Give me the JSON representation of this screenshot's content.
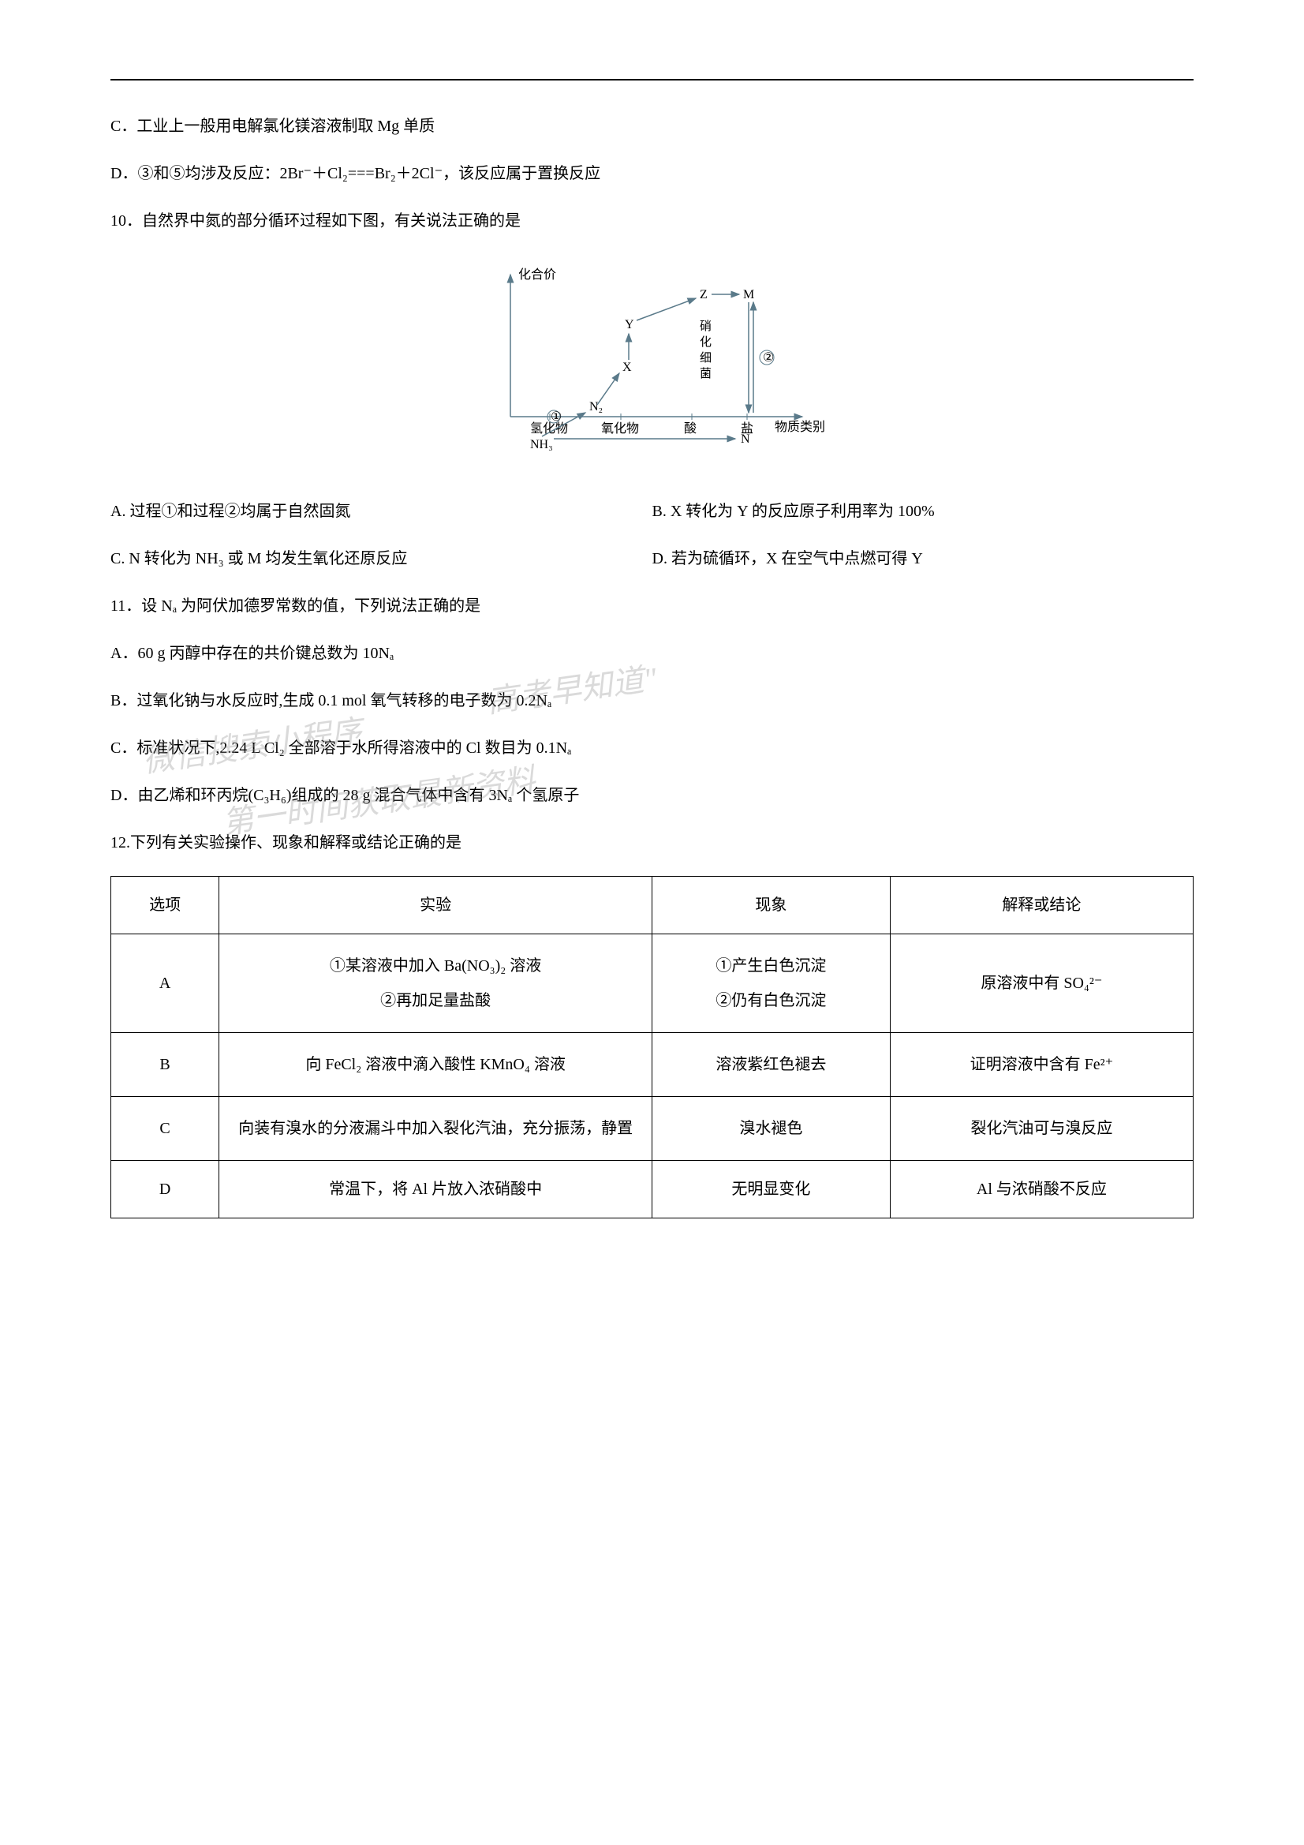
{
  "q9": {
    "c": "C．工业上一般用电解氯化镁溶液制取 Mg 单质",
    "d": "D．③和⑤均涉及反应：2Br⁻＋Cl₂===Br₂＋2Cl⁻，该反应属于置换反应"
  },
  "q10": {
    "stem": "10．自然界中氮的部分循环过程如下图，有关说法正确的是",
    "a": "A. 过程①和过程②均属于自然固氮",
    "b": "B. X 转化为 Y 的反应原子利用率为 100%",
    "c": "C. N 转化为 NH₃ 或 M 均发生氧化还原反应",
    "d": "D. 若为硫循环，X 在空气中点燃可得 Y",
    "diagram": {
      "ylabel": "化合价",
      "xlabel": "物质类别",
      "x_ticks": [
        "氢化物",
        "氧化物",
        "酸",
        "盐"
      ],
      "nh3": "NH₃",
      "n2": "N₂",
      "nodes": {
        "X": "X",
        "Y": "Y",
        "Z": "Z",
        "M": "M",
        "N": "N"
      },
      "circled": {
        "one": "①",
        "two": "②"
      },
      "vertical_label": "硝化细菌",
      "axis_color": "#5a7a8a"
    }
  },
  "q11": {
    "stem": "11．设 Nₐ 为阿伏加德罗常数的值，下列说法正确的是",
    "a": "A．60 g 丙醇中存在的共价键总数为 10Nₐ",
    "b": "B．过氧化钠与水反应时,生成 0.1 mol  氧气转移的电子数为 0.2Nₐ",
    "c": "C．标准状况下,2.24 L Cl₂ 全部溶于水所得溶液中的 Cl 数目为 0.1Nₐ",
    "d": "D．由乙烯和环丙烷(C₃H₆)组成的 28 g 混合气体中含有 3Nₐ 个氢原子"
  },
  "q12": {
    "stem": "12.下列有关实验操作、现象和解释或结论正确的是",
    "headers": [
      "选项",
      "实验",
      "现象",
      "解释或结论"
    ],
    "col_widths": [
      "10%",
      "40%",
      "22%",
      "28%"
    ],
    "rows": [
      {
        "opt": "A",
        "exp": "①某溶液中加入 Ba(NO₃)₂ 溶液\n②再加足量盐酸",
        "phen": "①产生白色沉淀\n②仍有白色沉淀",
        "concl": "原溶液中有 SO₄²⁻"
      },
      {
        "opt": "B",
        "exp": "向 FeCl₂ 溶液中滴入酸性 KMnO₄ 溶液",
        "phen": "溶液紫红色褪去",
        "concl": "证明溶液中含有 Fe²⁺"
      },
      {
        "opt": "C",
        "exp": "向装有溴水的分液漏斗中加入裂化汽油，充分振荡，静置",
        "phen": "溴水褪色",
        "concl": "裂化汽油可与溴反应"
      },
      {
        "opt": "D",
        "exp": "常温下，将 Al 片放入浓硝酸中",
        "phen": "无明显变化",
        "concl": "Al 与浓硝酸不反应"
      }
    ]
  },
  "watermarks": {
    "w1": "\"高考早知道\"",
    "w2": "微信搜索小程序",
    "w3": "第一时间获取最新资料"
  }
}
